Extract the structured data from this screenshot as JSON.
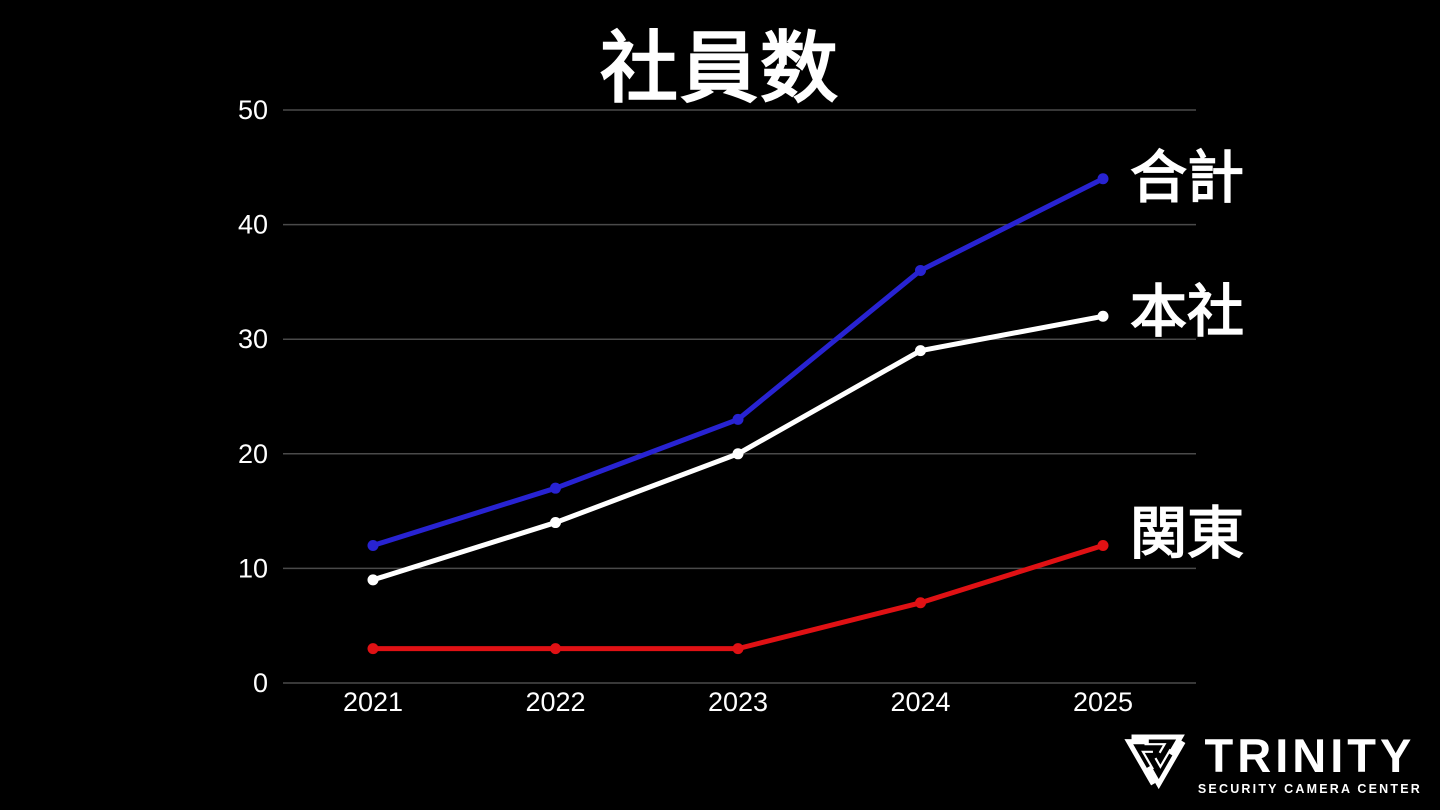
{
  "chart_data": {
    "type": "line",
    "title": "社員数",
    "categories": [
      "2021",
      "2022",
      "2023",
      "2024",
      "2025"
    ],
    "series": [
      {
        "name": "合計",
        "color": "#2823d2",
        "values": [
          12,
          17,
          23,
          36,
          44
        ]
      },
      {
        "name": "本社",
        "color": "#ffffff",
        "values": [
          9,
          14,
          20,
          29,
          32
        ]
      },
      {
        "name": "関東",
        "color": "#e01114",
        "values": [
          3,
          3,
          3,
          7,
          12
        ]
      }
    ],
    "xlabel": "",
    "ylabel": "",
    "ylim": [
      0,
      50
    ],
    "yticks": [
      0,
      10,
      20,
      30,
      40,
      50
    ],
    "grid": true,
    "legend_position": "right-of-line-ends",
    "background": "#000000"
  },
  "colors": {
    "background": "#000000",
    "grid": "#4a4a4a",
    "text": "#ffffff"
  },
  "logo": {
    "brand": "TRINITY",
    "tagline": "SECURITY CAMERA CENTER"
  }
}
